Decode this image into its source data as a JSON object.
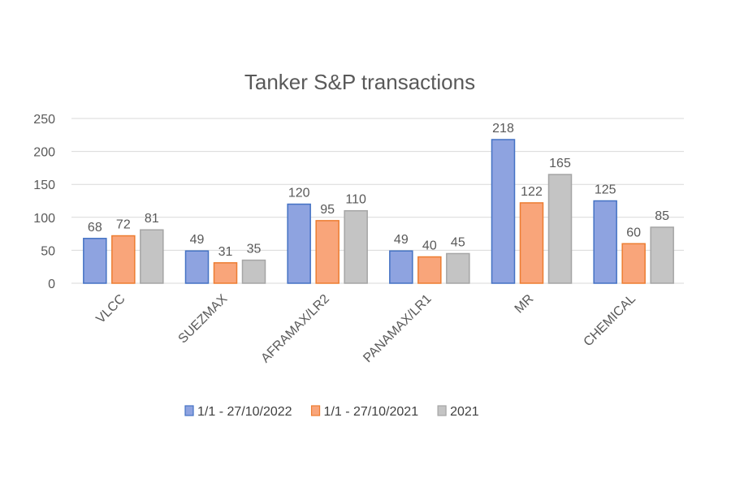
{
  "chart_data": {
    "type": "bar",
    "title": "Tanker S&P transactions",
    "xlabel": "",
    "ylabel": "",
    "categories": [
      "VLCC",
      "SUEZMAX",
      "AFRAMAX/LR2",
      "PANAMAX/LR1",
      "MR",
      "CHEMICAL"
    ],
    "ylim": [
      0,
      250
    ],
    "yticks": [
      0,
      50,
      100,
      150,
      200,
      250
    ],
    "grid": true,
    "legend_position": "bottom",
    "series": [
      {
        "name": "1/1 - 27/10/2022",
        "values": [
          68,
          49,
          120,
          49,
          218,
          125
        ],
        "fill": "#8ea3e0",
        "stroke": "#4472c4"
      },
      {
        "name": "1/1 - 27/10/2021",
        "values": [
          72,
          31,
          95,
          40,
          122,
          60
        ],
        "fill": "#f9a57a",
        "stroke": "#ed7d31"
      },
      {
        "name": "2021",
        "values": [
          81,
          35,
          110,
          45,
          165,
          85
        ],
        "fill": "#c4c4c4",
        "stroke": "#a5a5a5"
      }
    ]
  }
}
